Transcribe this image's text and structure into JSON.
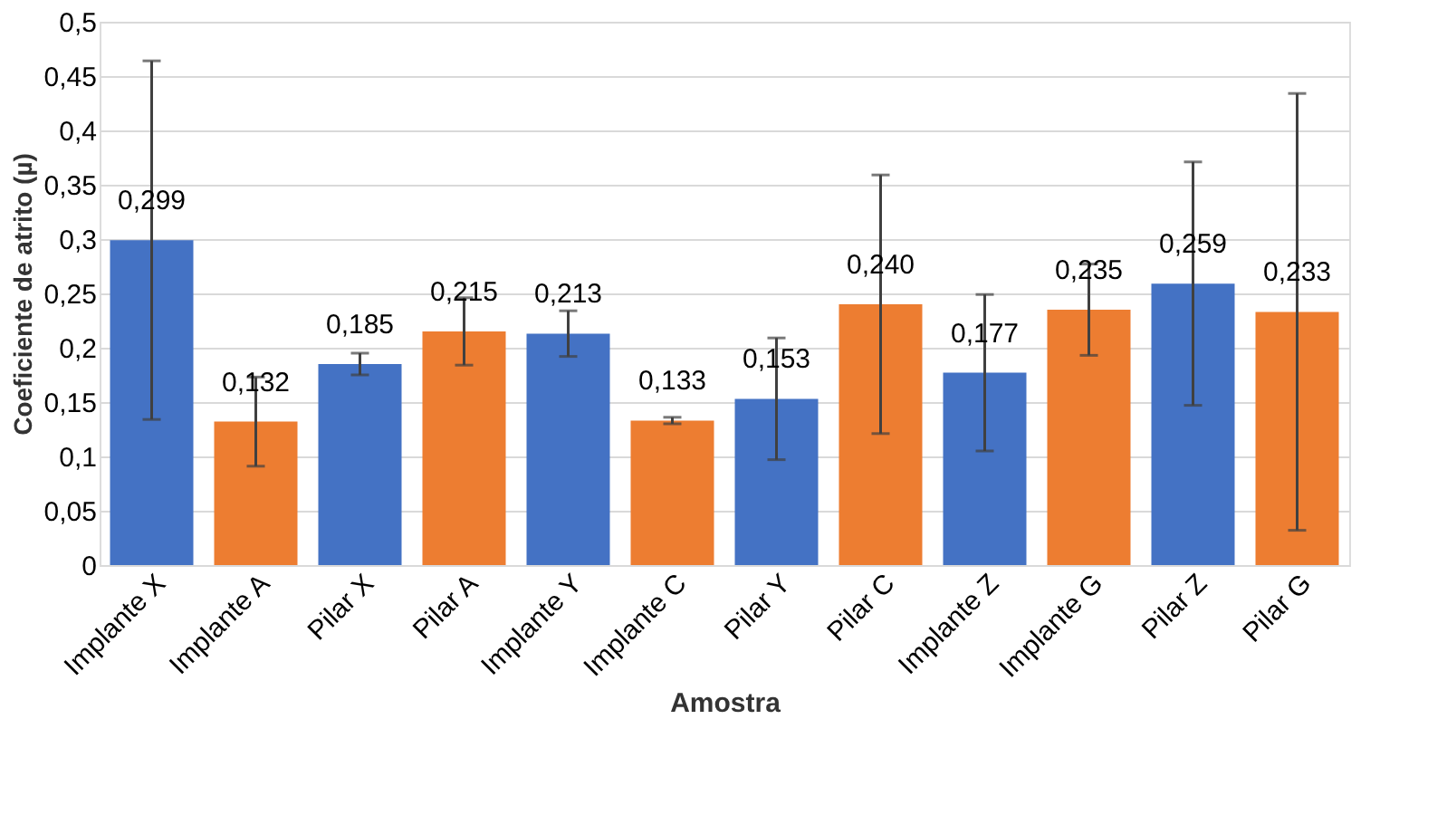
{
  "chart_data": {
    "type": "bar",
    "xlabel": "Amostra",
    "ylabel": "Coeficiente de atrito (µ)",
    "categories": [
      "Implante X",
      "Implante A",
      "Pilar X",
      "Pilar A",
      "Implante Y",
      "Implante C",
      "Pilar Y",
      "Pilar C",
      "Implante Z",
      "Implante G",
      "Pilar Z",
      "Pilar G"
    ],
    "values": [
      0.299,
      0.132,
      0.185,
      0.215,
      0.213,
      0.133,
      0.153,
      0.24,
      0.177,
      0.235,
      0.259,
      0.233
    ],
    "value_labels": [
      "0,299",
      "0,132",
      "0,185",
      "0,215",
      "0,213",
      "0,133",
      "0,153",
      "0,240",
      "0,177",
      "0,235",
      "0,259",
      "0,233"
    ],
    "errors": [
      0.165,
      0.041,
      0.01,
      0.031,
      0.021,
      0.003,
      0.056,
      0.119,
      0.072,
      0.042,
      0.112,
      0.201
    ],
    "colors": [
      "#4472c4",
      "#ed7d31",
      "#4472c4",
      "#ed7d31",
      "#4472c4",
      "#ed7d31",
      "#4472c4",
      "#ed7d31",
      "#4472c4",
      "#ed7d31",
      "#4472c4",
      "#ed7d31"
    ],
    "ylim": [
      0,
      0.5
    ],
    "yticks": [
      0,
      {
        "value": 0.05,
        "label": "0,05"
      },
      {
        "value": 0.1,
        "label": "0,1"
      },
      {
        "value": 0.15,
        "label": "0,15"
      },
      {
        "value": 0.2,
        "label": "0,2"
      },
      {
        "value": 0.25,
        "label": "0,25"
      },
      {
        "value": 0.3,
        "label": "0,3"
      },
      {
        "value": 0.35,
        "label": "0,35"
      },
      {
        "value": 0.4,
        "label": "0,4"
      },
      {
        "value": 0.45,
        "label": "0,45"
      },
      {
        "value": 0.5,
        "label": "0,5"
      }
    ],
    "grid": "y",
    "legend": false
  }
}
